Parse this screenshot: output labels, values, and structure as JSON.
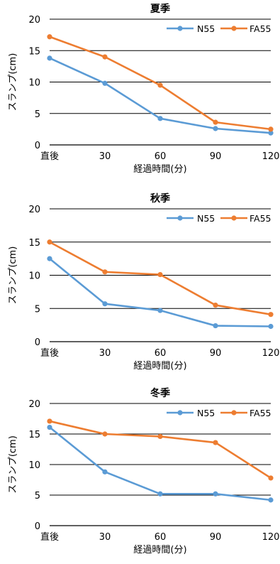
{
  "colors": {
    "n55": "#5B9BD5",
    "fa55": "#ED7D31",
    "grid": "#000000"
  },
  "chart_data": [
    {
      "type": "line",
      "title": "夏季",
      "categories": [
        "直後",
        "30",
        "60",
        "90",
        "120"
      ],
      "xlabel": "経過時間(分)",
      "ylabel": "スランプ(cm)",
      "ylim": [
        0,
        20
      ],
      "yticks": [
        "0",
        "5",
        "10",
        "15",
        "20"
      ],
      "grid": true,
      "legend": "top-right",
      "series": [
        {
          "name": "N55",
          "values": [
            13.8,
            9.8,
            4.2,
            2.6,
            1.9
          ]
        },
        {
          "name": "FA55",
          "values": [
            17.2,
            14.0,
            9.5,
            3.6,
            2.5
          ]
        }
      ]
    },
    {
      "type": "line",
      "title": "秋季",
      "categories": [
        "直後",
        "30",
        "60",
        "90",
        "120"
      ],
      "xlabel": "経過時間(分)",
      "ylabel": "スランプ(cm)",
      "ylim": [
        0,
        20
      ],
      "yticks": [
        "0",
        "5",
        "10",
        "15",
        "20"
      ],
      "grid": true,
      "legend": "top-right",
      "series": [
        {
          "name": "N55",
          "values": [
            12.5,
            5.7,
            4.7,
            2.4,
            2.3
          ]
        },
        {
          "name": "FA55",
          "values": [
            15.0,
            10.5,
            10.1,
            5.5,
            4.1
          ]
        }
      ]
    },
    {
      "type": "line",
      "title": "冬季",
      "categories": [
        "直後",
        "30",
        "60",
        "90",
        "120"
      ],
      "xlabel": "経過時間(分)",
      "ylabel": "スランプ(cm)",
      "ylim": [
        0,
        20
      ],
      "yticks": [
        "0",
        "5",
        "10",
        "15",
        "20"
      ],
      "grid": true,
      "legend": "top-right",
      "series": [
        {
          "name": "N55",
          "values": [
            16.1,
            8.8,
            5.2,
            5.2,
            4.2
          ]
        },
        {
          "name": "FA55",
          "values": [
            17.1,
            15.0,
            14.6,
            13.6,
            7.8
          ]
        }
      ]
    }
  ]
}
